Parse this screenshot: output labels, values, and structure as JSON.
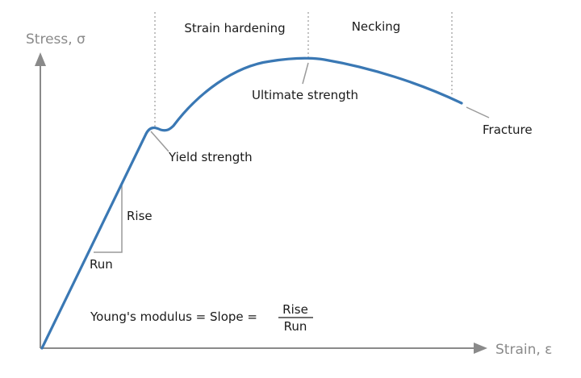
{
  "axes": {
    "y_label": "Stress, σ",
    "x_label": "Strain, ε"
  },
  "regions": {
    "strain_hardening": "Strain hardening",
    "necking": "Necking"
  },
  "annotations": {
    "yield_strength": "Yield strength",
    "ultimate_strength": "Ultimate strength",
    "fracture": "Fracture",
    "rise": "Rise",
    "run": "Run"
  },
  "formula": {
    "lhs": "Young's modulus = Slope =",
    "numerator": "Rise",
    "denominator": "Run"
  },
  "colors": {
    "curve": "#3a78b4",
    "axis": "#8a8a8a",
    "text": "#1a1a1a",
    "guide": "#9a9a9a"
  }
}
